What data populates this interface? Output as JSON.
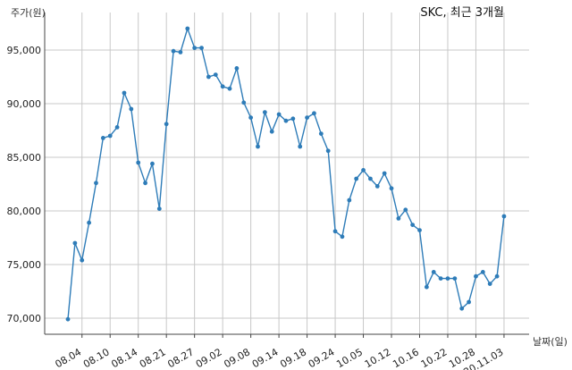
{
  "chart_data": {
    "type": "line",
    "title": "SKC, 최근 3개월",
    "ylabel": "주가(원)",
    "xlabel": "날짜(일)",
    "ylim": [
      68500,
      98500
    ],
    "yticks": [
      70000,
      75000,
      80000,
      85000,
      90000,
      95000
    ],
    "ytick_labels": [
      "70,000",
      "75,000",
      "80,000",
      "85,000",
      "90,000",
      "95,000"
    ],
    "xtick_positions": [
      2,
      6,
      10,
      14,
      18,
      22,
      26,
      30,
      34,
      38,
      42,
      46,
      50,
      54,
      58,
      62
    ],
    "xtick_labels": [
      "08.04",
      "08.10",
      "08.14",
      "08.21",
      "08.27",
      "09.02",
      "09.08",
      "09.14",
      "09.18",
      "09.24",
      "10.05",
      "10.12",
      "10.16",
      "10.22",
      "10.28",
      "20.11.03"
    ],
    "grid": true,
    "legend": "none",
    "color": "#2e7cb8",
    "series": [
      {
        "values": [
          69900,
          77000,
          75400,
          78900,
          82600,
          86800,
          87000,
          87800,
          91000,
          89500,
          84500,
          82600,
          84400,
          80200,
          88100,
          94900,
          94800,
          97000,
          95200,
          95200,
          92500,
          92700,
          91600,
          91400,
          93300,
          90100,
          88700,
          86000,
          89200,
          87400,
          89000,
          88400,
          88600,
          86000,
          88700,
          89100,
          87200,
          85600,
          78100,
          77600,
          81000,
          83000,
          83800,
          83000,
          82300,
          83500,
          82100,
          79300,
          80100,
          78700,
          78200,
          72900,
          74300,
          73700,
          73700,
          73700,
          70900,
          71500,
          73900,
          74300,
          73200,
          73900,
          79500
        ]
      }
    ]
  }
}
